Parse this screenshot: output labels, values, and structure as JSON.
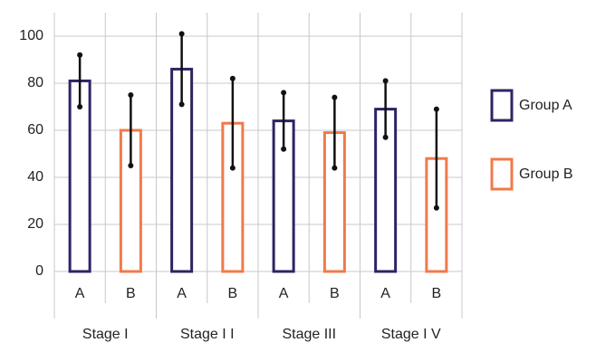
{
  "chart_data": {
    "type": "bar",
    "categories": [
      "Stage I",
      "Stage I I",
      "Stage III",
      "Stage I V"
    ],
    "subcategories": [
      "A",
      "B"
    ],
    "series": [
      {
        "name": "Group A",
        "color": "#2e2464",
        "values": [
          81,
          86,
          64,
          69
        ],
        "errors": [
          11,
          15,
          12,
          12
        ]
      },
      {
        "name": "Group B",
        "color": "#f07a4a",
        "values": [
          60,
          63,
          59,
          48
        ],
        "errors": [
          15,
          19,
          15,
          21
        ]
      }
    ],
    "ylim": [
      0,
      110
    ],
    "yticks": [
      0,
      20,
      40,
      60,
      80,
      100
    ],
    "grid": true,
    "legend": "right"
  }
}
